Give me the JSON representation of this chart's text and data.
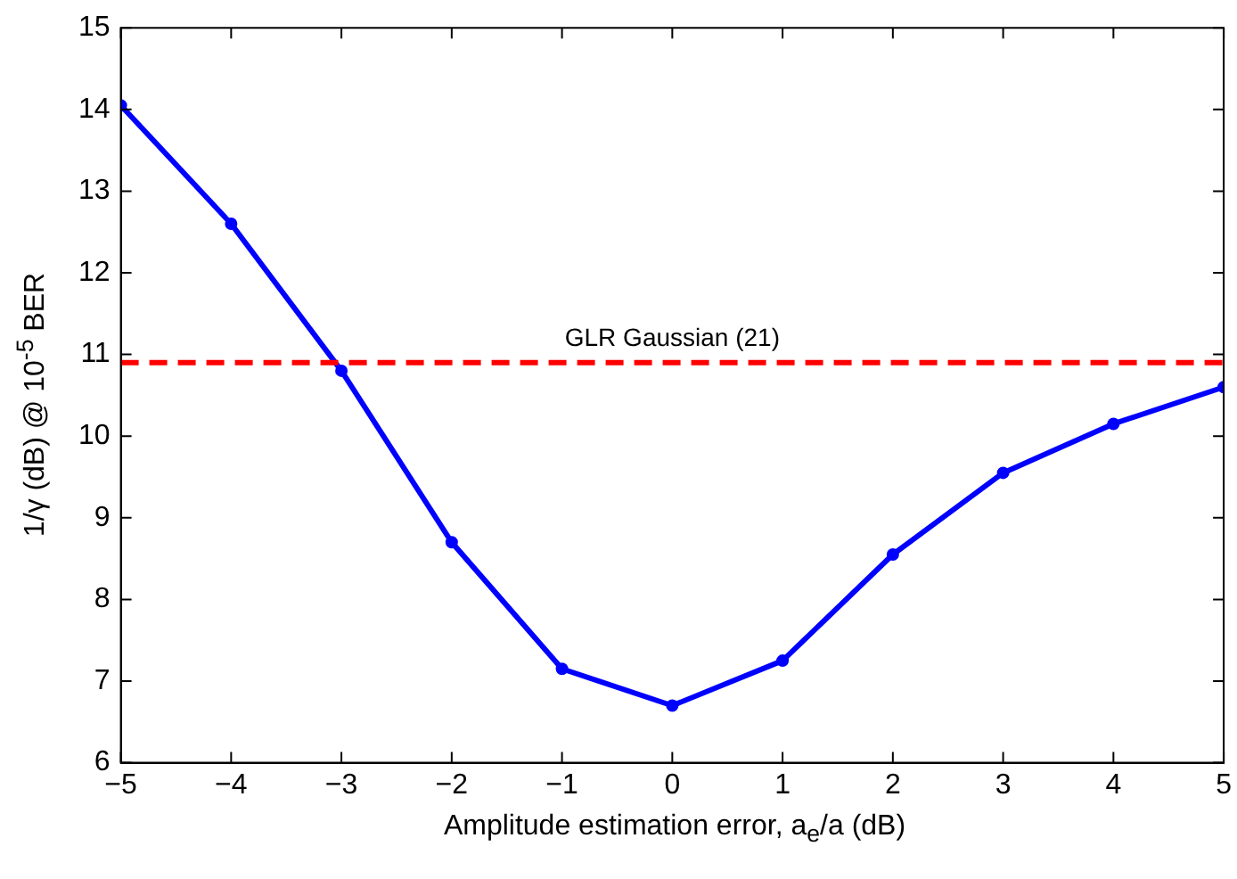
{
  "chart_data": {
    "type": "line",
    "xlabel": "Amplitude estimation error, a$_{e}$/a (dB)",
    "ylabel": "1/γ (dB) @ 10$^{-5}$ BER",
    "x": [
      -5,
      -4,
      -3,
      -2,
      -1,
      0,
      1,
      2,
      3,
      4,
      5
    ],
    "series": [
      {
        "color": "#0000ff",
        "values": [
          14.05,
          12.6,
          10.8,
          8.7,
          7.15,
          6.7,
          7.25,
          8.55,
          9.55,
          10.15,
          10.6
        ]
      }
    ],
    "xlim": [
      -5,
      5
    ],
    "xticks": [
      {
        "value": -5,
        "label": "−5"
      },
      {
        "value": -4,
        "label": "−4"
      },
      {
        "value": -3,
        "label": "−3"
      },
      {
        "value": -2,
        "label": "−2"
      },
      {
        "value": -1,
        "label": "−1"
      },
      0,
      1,
      2,
      3,
      4,
      5
    ],
    "ylim": [
      6,
      15
    ],
    "yticks": [
      6,
      7,
      8,
      9,
      10,
      11,
      12,
      13,
      14,
      15
    ],
    "ref_lines": [
      {
        "axis": "y",
        "value": 10.9,
        "label": "GLR Gaussian (21)",
        "color": "#ff0000",
        "line_style": "dashed"
      }
    ],
    "grid": false,
    "legend": false,
    "marker": "circle",
    "line_style": "solid"
  }
}
